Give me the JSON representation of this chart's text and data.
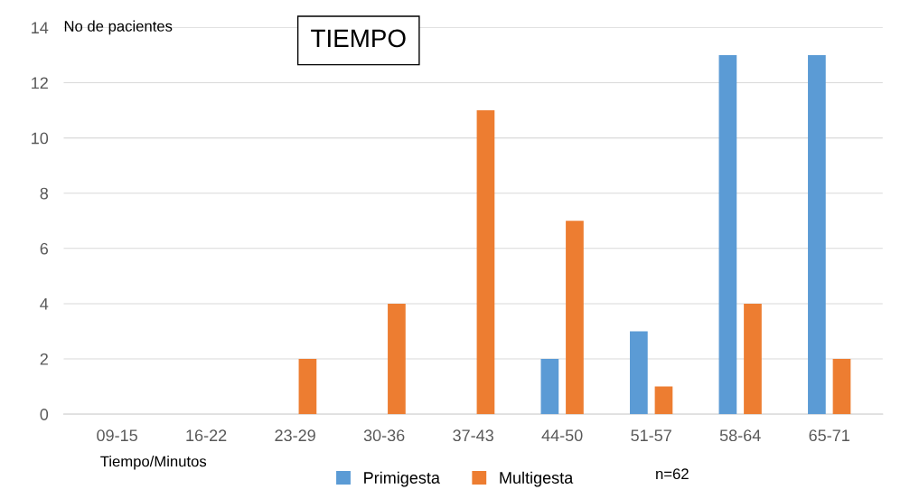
{
  "chart_data": {
    "type": "bar",
    "title": "TIEMPO",
    "ylabel": "No de pacientes",
    "xlabel": "Tiempo/Minutos",
    "categories": [
      "09-15",
      "16-22",
      "23-29",
      "30-36",
      "37-43",
      "44-50",
      "51-57",
      "58-64",
      "65-71"
    ],
    "series": [
      {
        "name": "Primigesta",
        "color": "#5b9bd5",
        "values": [
          0,
          0,
          0,
          0,
          0,
          2,
          3,
          13,
          13
        ]
      },
      {
        "name": "Multigesta",
        "color": "#ed7d31",
        "values": [
          0,
          0,
          2,
          4,
          11,
          7,
          1,
          4,
          2
        ]
      }
    ],
    "ylim": [
      0,
      14
    ],
    "yticks": [
      0,
      2,
      4,
      6,
      8,
      10,
      12,
      14
    ],
    "grid": "y",
    "legend": "bottom",
    "annotations": [
      "n=62"
    ]
  }
}
